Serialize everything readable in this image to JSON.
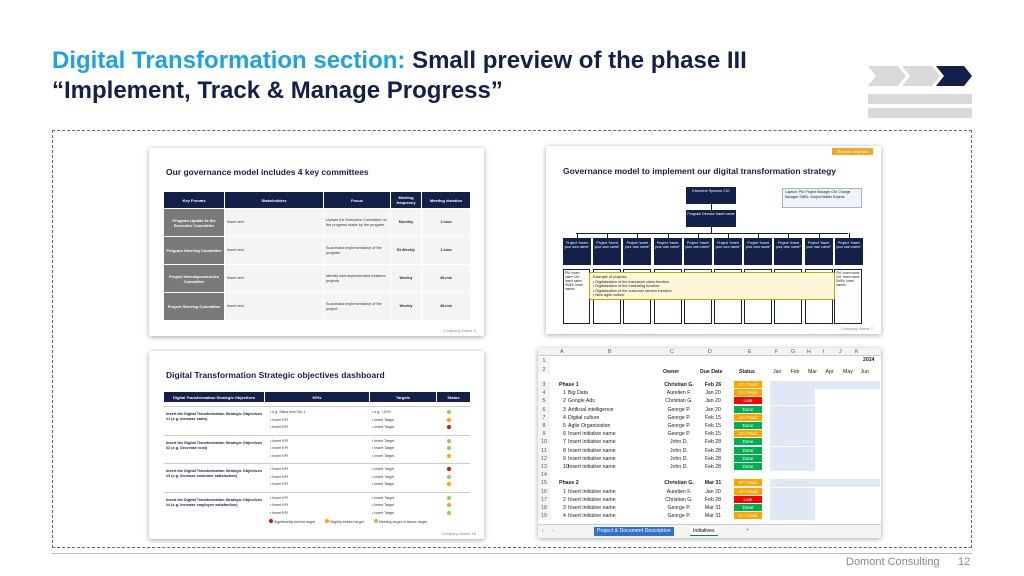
{
  "header": {
    "title_prefix": "Digital Transformation section:",
    "title_rest": "Small preview of the phase III “Implement, Track & Manage Progress”"
  },
  "colors": {
    "accent": "#1fa3e0",
    "navy": "#13204a",
    "green": "#00b050",
    "orange": "#ffa500",
    "red": "#ff0000",
    "grey": "#7a7a7a"
  },
  "footer": {
    "company": "Domont Consulting",
    "page": "12"
  },
  "slide1": {
    "title": "Our governance model includes 4 key committees",
    "headers": [
      "Key Forums",
      "Stakeholders",
      "Focus",
      "Meeting frequency",
      "Meeting duration"
    ],
    "rows": [
      [
        "Program Update to the Executive Committee",
        "Insert text",
        "Update the Executive Committee on the progress made by the program",
        "Monthly",
        "1-hour"
      ],
      [
        "Program Steering Committee",
        "Insert text",
        "Successful implementation of the program",
        "Bi-Weekly",
        "1-hour"
      ],
      [
        "Project Interdependencies Committee",
        "Insert text",
        "Identify interdependencies between projects",
        "Weekly",
        "45-min"
      ],
      [
        "Project Steering Committee",
        "Insert text",
        "Successful implementation of the project",
        "Weekly",
        "45-min"
      ]
    ],
    "footnote": "Company Name      4"
  },
  "slide2": {
    "tag": "Real life example",
    "title": "Governance model to implement our digital transformation strategy",
    "sponsor": "Executive Sponsor CIO",
    "caption": "Caption: PM: Project Manager CM: Change Manager SMEs: Subject Matter Experts",
    "director": "Program Director Insert name",
    "project": "Project “insert your own name”",
    "left_box": "PM: Insert name CM: Insert name SMEs: Insert names",
    "right_box": "PM: Insert name CM: Insert name SMEs: Insert names",
    "example_title": "Example of projects:",
    "examples": [
      "• Digitalization of the insurance claim function",
      "• Digitalization of the marketing function",
      "• Digitalization of the customer service function",
      "• New agile culture"
    ],
    "footnote": "Company Name      7"
  },
  "slide3": {
    "title": "Digital Transformation Strategic objectives dashboard",
    "headers": [
      "Digital Transformation Strategic Objectives",
      "KPIs",
      "Targets",
      "Status"
    ],
    "objectives": [
      "Insert the Digital Transformation Strategic Objectives #1 (e.g. Increase sales)",
      "Insert the Digital Transformation Strategic Objectives #2 (e.g. Decrease cost)",
      "Insert the Digital Transformation Strategic Objectives #3 (e.g. Increase customer satisfaction)",
      "Insert the Digital Transformation Strategic Objectives #4 (e.g. Increase employee satisfaction)"
    ],
    "kpi_first": "• e.g. Sales from BU 1",
    "kpi": "• Insert KPI",
    "target_first": "• e.g. +10%",
    "target": "• Insert Target",
    "legend": [
      "Significantly behind target",
      "Slightly behind target",
      "Meeting target or above target"
    ],
    "footnote": "Company Name      16"
  },
  "sheet": {
    "col_letters": [
      "A",
      "B",
      "C",
      "D",
      "E",
      "F",
      "G",
      "H",
      "I",
      "J",
      "K"
    ],
    "year": "2024",
    "headers": {
      "owner": "Owner",
      "due": "Due Date",
      "status": "Status"
    },
    "months": [
      "Jan",
      "Feb",
      "Mar",
      "Apr",
      "May",
      "Jun"
    ],
    "rows": [
      {
        "n": "3",
        "name": "Phase 1",
        "owner": "Christian G.",
        "due": "Feb 26",
        "status": "On Track",
        "bold": true
      },
      {
        "n": "4",
        "id": "1",
        "name": "Big Data",
        "owner": "Aurelien F.",
        "due": "Jan 20",
        "status": "On Track"
      },
      {
        "n": "5",
        "id": "2",
        "name": "Google Ads",
        "owner": "Christian G.",
        "due": "Jan 20",
        "status": "Late"
      },
      {
        "n": "6",
        "id": "3",
        "name": "Artificial intelligence",
        "owner": "George P.",
        "due": "Jan 20",
        "status": "Done"
      },
      {
        "n": "7",
        "id": "4",
        "name": "Digital culture",
        "owner": "George P.",
        "due": "Feb 15",
        "status": "On Track"
      },
      {
        "n": "8",
        "id": "5",
        "name": "Agile Organization",
        "owner": "George P.",
        "due": "Feb 15",
        "status": "Done"
      },
      {
        "n": "9",
        "id": "6",
        "name": "Insert initiative name",
        "owner": "George P.",
        "due": "Feb 15",
        "status": "On Track"
      },
      {
        "n": "10",
        "id": "7",
        "name": "Insert initiative name",
        "owner": "John D.",
        "due": "Feb 28",
        "status": "Done"
      },
      {
        "n": "11",
        "id": "8",
        "name": "Insert initiative name",
        "owner": "John D.",
        "due": "Feb 28",
        "status": "Done"
      },
      {
        "n": "12",
        "id": "9",
        "name": "Insert initiative name",
        "owner": "John D.",
        "due": "Feb 28",
        "status": "Done"
      },
      {
        "n": "13",
        "id": "10",
        "name": "Insert initiative name",
        "owner": "John D.",
        "due": "Feb 28",
        "status": "Done"
      },
      {
        "n": "14",
        "name": "",
        "owner": "",
        "due": "",
        "status": ""
      },
      {
        "n": "15",
        "name": "Phase 2",
        "owner": "Christian G.",
        "due": "Mar 31",
        "status": "On Track",
        "bold": true
      },
      {
        "n": "16",
        "id": "1",
        "name": "Insert initiative name",
        "owner": "Aurelien F.",
        "due": "Jan 20",
        "status": "On Track"
      },
      {
        "n": "17",
        "id": "2",
        "name": "Insert initiative name",
        "owner": "Christian G.",
        "due": "Feb 28",
        "status": "Late"
      },
      {
        "n": "18",
        "id": "3",
        "name": "Insert initiative name",
        "owner": "George P.",
        "due": "Mar 31",
        "status": "Done"
      },
      {
        "n": "19",
        "id": "4",
        "name": "Insert initiative name",
        "owner": "George P.",
        "due": "Mar 31",
        "status": "On Track"
      }
    ],
    "tabs": [
      "Project & Document Description",
      "Initiatives"
    ],
    "add_tab": "+"
  }
}
